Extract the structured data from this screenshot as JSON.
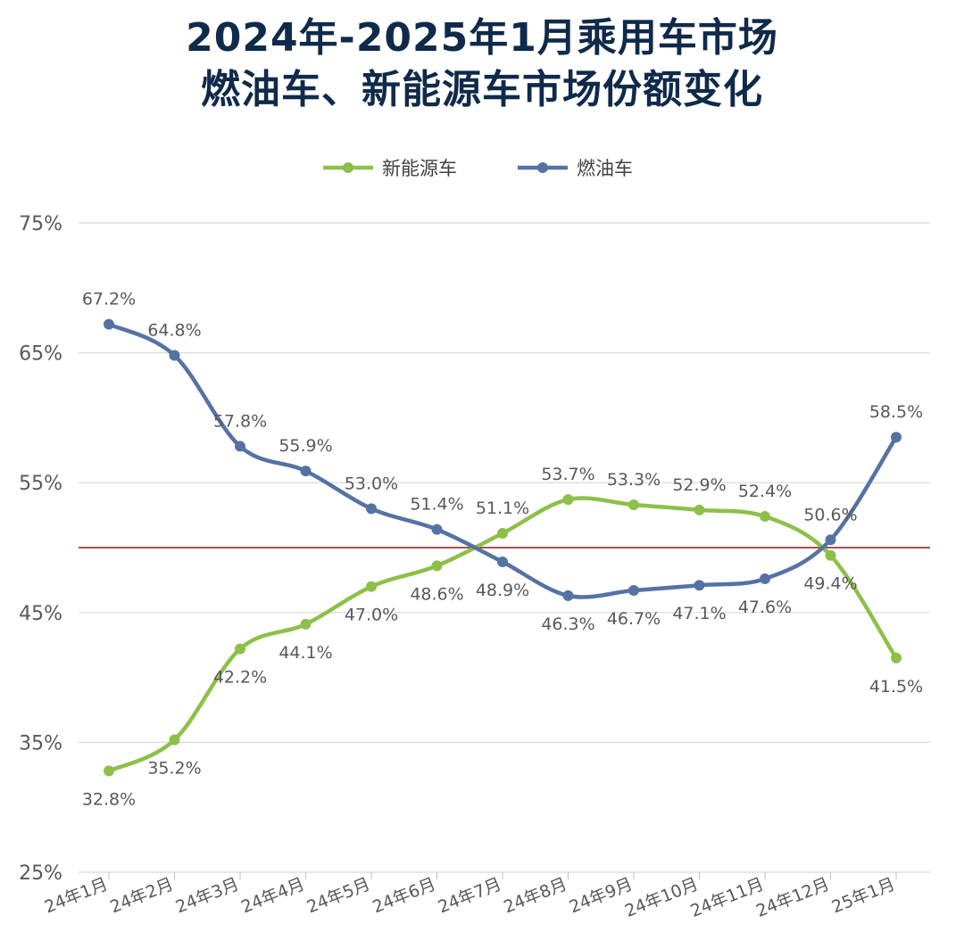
{
  "title_line1": "2024年-2025年1月乘用车市场",
  "title_line2": "燃油车、新能源车市场份额变化",
  "chart_data": {
    "type": "line",
    "categories": [
      "24年1月",
      "24年2月",
      "24年3月",
      "24年4月",
      "24年5月",
      "24年6月",
      "24年7月",
      "24年8月",
      "24年9月",
      "24年10月",
      "24年11月",
      "24年12月",
      "25年1月"
    ],
    "series": [
      {
        "name": "新能源车",
        "color": "#8dc049",
        "values": [
          32.8,
          35.2,
          42.2,
          44.1,
          47.0,
          48.6,
          51.1,
          53.7,
          53.3,
          52.9,
          52.4,
          49.4,
          41.5
        ],
        "labels": [
          "32.8%",
          "35.2%",
          "42.2%",
          "44.1%",
          "47.0%",
          "48.6%",
          "51.1%",
          "53.7%",
          "53.3%",
          "52.9%",
          "52.4%",
          "49.4%",
          "41.5%"
        ]
      },
      {
        "name": "燃油车",
        "color": "#5572a4",
        "values": [
          67.2,
          64.8,
          57.8,
          55.9,
          53.0,
          51.4,
          48.9,
          46.3,
          46.7,
          47.1,
          47.6,
          50.6,
          58.5
        ],
        "labels": [
          "67.2%",
          "64.8%",
          "57.8%",
          "55.9%",
          "53.0%",
          "51.4%",
          "48.9%",
          "46.3%",
          "46.7%",
          "47.1%",
          "47.6%",
          "50.6%",
          "58.5%"
        ]
      }
    ],
    "y_ticks": [
      "75%",
      "65%",
      "55%",
      "45%",
      "35%",
      "25%"
    ],
    "ylim": [
      25,
      75
    ],
    "reference_line": {
      "value": 50,
      "color": "#8b1a1a"
    },
    "grid": true,
    "legend_position": "top-center"
  }
}
